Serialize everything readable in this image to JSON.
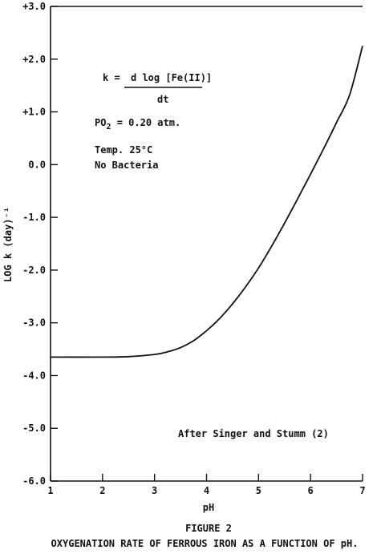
{
  "chart_data": {
    "type": "line",
    "xlabel": "pH",
    "ylabel": "LOG k (day)⁻¹",
    "xlim": [
      1,
      7
    ],
    "ylim": [
      -6.0,
      3.0
    ],
    "x_ticks": [
      1,
      2,
      3,
      4,
      5,
      6,
      7
    ],
    "y_ticks": [
      3.0,
      2.0,
      1.0,
      0.0,
      -1.0,
      -2.0,
      -3.0,
      -4.0,
      -5.0,
      -6.0
    ],
    "y_tick_labels": [
      "+3.0",
      "+2.0",
      "+1.0",
      "0.0",
      "-1.0",
      "-2.0",
      "-3.0",
      "-4.0",
      "-5.0",
      "-6.0"
    ],
    "grid": false,
    "series": [
      {
        "x": [
          1.0,
          2.0,
          2.5,
          3.0,
          3.25,
          3.5,
          3.75,
          4.0,
          4.25,
          4.5,
          4.75,
          5.0,
          5.25,
          5.5,
          5.75,
          6.0,
          6.25,
          6.5,
          6.75,
          7.0
        ],
        "y": [
          -3.65,
          -3.65,
          -3.64,
          -3.6,
          -3.55,
          -3.47,
          -3.34,
          -3.15,
          -2.92,
          -2.64,
          -2.32,
          -1.96,
          -1.55,
          -1.11,
          -0.65,
          -0.18,
          0.3,
          0.8,
          1.32,
          2.25
        ]
      }
    ],
    "annotations": {
      "formula_lhs": "k =",
      "formula_numerator": "d log [Fe(II)]",
      "formula_denominator": "dt",
      "po2_label": "PO",
      "po2_sub": "2",
      "po2_value": " = 0.20 atm.",
      "temp": "Temp. 25°C",
      "bacteria": "No Bacteria",
      "source": "After Singer and Stumm (2)"
    },
    "figure_label": "FIGURE 2",
    "caption": "OXYGENATION RATE OF FERROUS IRON AS A FUNCTION OF pH."
  }
}
